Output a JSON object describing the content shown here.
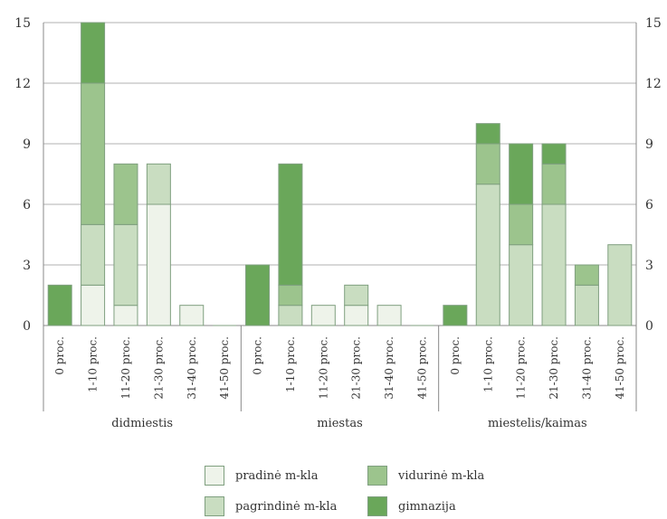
{
  "chart_data": {
    "type": "bar",
    "stacked": true,
    "ylim": [
      0,
      15
    ],
    "yticks": [
      0,
      3,
      6,
      9,
      12,
      15
    ],
    "grid": true,
    "legend_position": "bottom",
    "groups": [
      {
        "name": "didmiestis",
        "categories": [
          "0 proc.",
          "1-10 proc.",
          "11-20 proc.",
          "21-30 proc.",
          "31-40 proc.",
          "41-50 proc."
        ]
      },
      {
        "name": "miestas",
        "categories": [
          "0 proc.",
          "1-10 proc.",
          "11-20 proc.",
          "21-30 proc.",
          "31-40 proc.",
          "41-50 proc."
        ]
      },
      {
        "name": "miestelis/kaimas",
        "categories": [
          "0 proc.",
          "1-10 proc.",
          "11-20 proc.",
          "21-30 proc.",
          "31-40 proc.",
          "41-50 proc."
        ]
      }
    ],
    "series": [
      {
        "name": "pradinė m-kla",
        "color": "#eef3ea",
        "values": [
          0,
          2,
          1,
          6,
          1,
          0,
          0,
          0,
          1,
          1,
          1,
          0,
          0,
          0,
          0,
          0,
          0,
          0
        ]
      },
      {
        "name": "pagrindinė m-kla",
        "color": "#c9ddc1",
        "values": [
          0,
          3,
          4,
          2,
          0,
          0,
          0,
          1,
          0,
          1,
          0,
          0,
          0,
          7,
          4,
          6,
          2,
          4
        ]
      },
      {
        "name": "vidurinė m-kla",
        "color": "#9cc48d",
        "values": [
          0,
          7,
          3,
          0,
          0,
          0,
          0,
          1,
          0,
          0,
          0,
          0,
          0,
          2,
          2,
          2,
          1,
          0
        ]
      },
      {
        "name": "gimnazija",
        "color": "#6aa75a",
        "values": [
          2,
          3,
          0,
          0,
          0,
          0,
          3,
          6,
          0,
          0,
          0,
          0,
          1,
          1,
          3,
          1,
          0,
          0
        ]
      }
    ]
  }
}
